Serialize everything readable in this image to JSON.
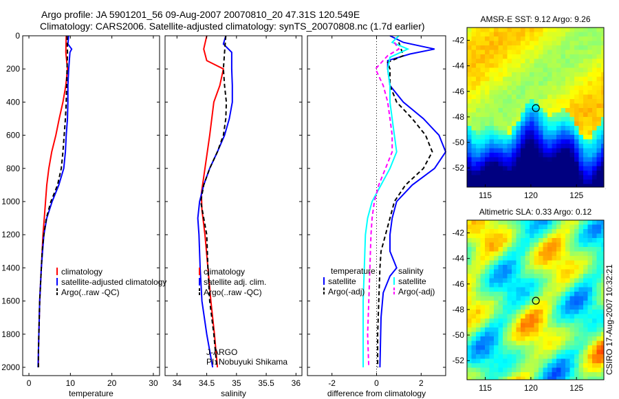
{
  "header": {
    "title_line1": "Argo profile: JA 5901201_56 09-Aug-2007 20070810_20 47.31S 120.549E",
    "title_line2": "Climatology: CARS2006. Satellite-adjusted climatology: synTS_20070808.nc (1.7d earlier)"
  },
  "colors": {
    "climatology": "#ff0000",
    "satellite": "#0000ff",
    "argo": "#000000",
    "satellite_salinity": "#00ffff",
    "argo_adj_salinity": "#ff00ff"
  },
  "chart_data": [
    {
      "type": "line",
      "id": "temperature",
      "xlabel": "temperature",
      "xlim": [
        -1.5,
        31.5
      ],
      "ylim": [
        2050,
        0
      ],
      "yreverse": true,
      "xticks": [
        0,
        10,
        20,
        30
      ],
      "yticks": [
        0,
        200,
        400,
        600,
        800,
        1000,
        1200,
        1400,
        1600,
        1800,
        2000
      ],
      "series": [
        {
          "name": "climatology",
          "color": "#ff0000",
          "dash": "",
          "points": [
            [
              9.0,
              0
            ],
            [
              8.9,
              100
            ],
            [
              9.3,
              200
            ],
            [
              8.9,
              300
            ],
            [
              8.2,
              400
            ],
            [
              7.3,
              500
            ],
            [
              6.5,
              600
            ],
            [
              5.5,
              700
            ],
            [
              4.8,
              800
            ],
            [
              4.3,
              900
            ],
            [
              4.0,
              1000
            ],
            [
              3.7,
              1100
            ],
            [
              3.4,
              1200
            ],
            [
              3.2,
              1300
            ],
            [
              3.0,
              1400
            ],
            [
              2.8,
              1500
            ],
            [
              2.6,
              1600
            ],
            [
              2.5,
              1700
            ],
            [
              2.4,
              1800
            ],
            [
              2.3,
              1900
            ],
            [
              2.3,
              2000
            ]
          ]
        },
        {
          "name": "satellite-adjusted climatology",
          "color": "#0000ff",
          "dash": "",
          "points": [
            [
              9.6,
              0
            ],
            [
              9.4,
              50
            ],
            [
              10.3,
              80
            ],
            [
              9.9,
              100
            ],
            [
              9.6,
              200
            ],
            [
              9.4,
              300
            ],
            [
              9.4,
              400
            ],
            [
              9.3,
              500
            ],
            [
              9.0,
              600
            ],
            [
              8.8,
              700
            ],
            [
              8.4,
              800
            ],
            [
              7.2,
              900
            ],
            [
              5.6,
              1000
            ],
            [
              4.3,
              1100
            ],
            [
              3.6,
              1200
            ],
            [
              3.3,
              1300
            ],
            [
              3.0,
              1400
            ],
            [
              2.8,
              1500
            ],
            [
              2.6,
              1600
            ],
            [
              2.5,
              1700
            ],
            [
              2.4,
              1800
            ],
            [
              2.3,
              1900
            ],
            [
              2.2,
              2000
            ]
          ]
        },
        {
          "name": "Argo(..raw -QC)",
          "color": "#000000",
          "dash": "6,4",
          "points": [
            [
              9.2,
              0
            ],
            [
              9.3,
              100
            ],
            [
              9.2,
              200
            ],
            [
              9.1,
              300
            ],
            [
              9.0,
              400
            ],
            [
              8.8,
              500
            ],
            [
              8.5,
              600
            ],
            [
              8.2,
              700
            ],
            [
              7.8,
              800
            ],
            [
              6.9,
              900
            ],
            [
              5.3,
              1000
            ],
            [
              4.2,
              1100
            ],
            [
              3.6,
              1200
            ],
            [
              3.2,
              1300
            ],
            [
              3.0,
              1400
            ],
            [
              2.8,
              1500
            ],
            [
              2.6,
              1600
            ],
            [
              2.5,
              1700
            ],
            [
              2.4,
              1800
            ],
            [
              2.3,
              1900
            ],
            [
              2.3,
              2000
            ]
          ]
        }
      ],
      "legend": [
        "climatology",
        "satellite-adjusted climatology",
        "Argo(..raw -QC)"
      ],
      "legend_position": "lower-right"
    },
    {
      "type": "line",
      "id": "salinity",
      "xlabel": "salinity",
      "xlim": [
        33.8,
        36.1
      ],
      "ylim": [
        2050,
        0
      ],
      "yreverse": true,
      "xticks": [
        34,
        34.5,
        35,
        35.5,
        36
      ],
      "series": [
        {
          "name": "climatology",
          "color": "#ff0000",
          "dash": "",
          "points": [
            [
              34.5,
              0
            ],
            [
              34.45,
              80
            ],
            [
              34.5,
              150
            ],
            [
              34.78,
              200
            ],
            [
              34.72,
              300
            ],
            [
              34.62,
              400
            ],
            [
              34.55,
              600
            ],
            [
              34.47,
              800
            ],
            [
              34.41,
              950
            ],
            [
              34.42,
              1050
            ],
            [
              34.47,
              1200
            ],
            [
              34.52,
              1400
            ],
            [
              34.57,
              1600
            ],
            [
              34.63,
              1800
            ],
            [
              34.68,
              2000
            ]
          ]
        },
        {
          "name": "satellite adj. clim.",
          "color": "#0000ff",
          "dash": "",
          "points": [
            [
              34.82,
              0
            ],
            [
              34.78,
              50
            ],
            [
              34.92,
              100
            ],
            [
              34.92,
              200
            ],
            [
              34.93,
              300
            ],
            [
              34.93,
              400
            ],
            [
              34.88,
              500
            ],
            [
              34.8,
              600
            ],
            [
              34.68,
              700
            ],
            [
              34.55,
              800
            ],
            [
              34.45,
              900
            ],
            [
              34.38,
              1000
            ],
            [
              34.35,
              1100
            ],
            [
              34.37,
              1200
            ],
            [
              34.39,
              1400
            ],
            [
              34.42,
              1600
            ],
            [
              34.5,
              1800
            ],
            [
              34.6,
              2000
            ]
          ]
        },
        {
          "name": "Argo(..raw -QC)",
          "color": "#000000",
          "dash": "6,4",
          "points": [
            [
              34.82,
              0
            ],
            [
              34.8,
              100
            ],
            [
              34.78,
              200
            ],
            [
              34.8,
              300
            ],
            [
              34.83,
              400
            ],
            [
              34.82,
              500
            ],
            [
              34.78,
              600
            ],
            [
              34.68,
              700
            ],
            [
              34.55,
              800
            ],
            [
              34.45,
              900
            ],
            [
              34.4,
              1000
            ],
            [
              34.45,
              1100
            ],
            [
              34.5,
              1200
            ],
            [
              34.52,
              1400
            ],
            [
              34.55,
              1600
            ],
            [
              34.62,
              1800
            ],
            [
              34.67,
              2000
            ]
          ]
        }
      ],
      "legend": [
        "climatology",
        "satellite adj. clim.",
        "Argo(..raw -QC)"
      ],
      "legend_position": "lower-right",
      "annotation": [
        "J-ARGO",
        "PI: Nobuyuki Shikama"
      ]
    },
    {
      "type": "line",
      "id": "difference",
      "xlabel": "difference from climatology",
      "xlim": [
        -3.1,
        3.1
      ],
      "ylim": [
        2050,
        0
      ],
      "yreverse": true,
      "xticks": [
        -2,
        0,
        2
      ],
      "series": [
        {
          "name": "temperature satellite",
          "color": "#0000ff",
          "dash": "",
          "points": [
            [
              0.6,
              0
            ],
            [
              1.2,
              40
            ],
            [
              2.6,
              80
            ],
            [
              1.5,
              110
            ],
            [
              0.5,
              150
            ],
            [
              0.5,
              200
            ],
            [
              0.6,
              300
            ],
            [
              1.2,
              400
            ],
            [
              2.1,
              500
            ],
            [
              2.8,
              600
            ],
            [
              3.1,
              700
            ],
            [
              2.6,
              800
            ],
            [
              1.6,
              900
            ],
            [
              0.9,
              1000
            ],
            [
              0.7,
              1100
            ],
            [
              0.6,
              1200
            ],
            [
              0.6,
              1300
            ],
            [
              0.9,
              1400
            ],
            [
              0.6,
              1450
            ],
            [
              0.3,
              1550
            ],
            [
              0.2,
              1700
            ],
            [
              0.15,
              2000
            ]
          ]
        },
        {
          "name": "temperature Argo(-adj)",
          "color": "#000000",
          "dash": "6,4",
          "points": [
            [
              1.0,
              40
            ],
            [
              1.1,
              80
            ],
            [
              1.2,
              120
            ],
            [
              0.5,
              160
            ],
            [
              0.6,
              200
            ],
            [
              0.6,
              300
            ],
            [
              0.9,
              400
            ],
            [
              1.6,
              500
            ],
            [
              2.2,
              600
            ],
            [
              2.5,
              700
            ],
            [
              2.1,
              800
            ],
            [
              1.3,
              900
            ],
            [
              0.8,
              1000
            ],
            [
              0.6,
              1100
            ],
            [
              0.4,
              1200
            ],
            [
              0.2,
              1300
            ],
            [
              0.15,
              1400
            ],
            [
              0.1,
              1600
            ],
            [
              0.05,
              1800
            ],
            [
              0.05,
              2000
            ]
          ]
        },
        {
          "name": "salinity satellite",
          "color": "#00ffff",
          "dash": "",
          "points": [
            [
              1.0,
              0
            ],
            [
              0.7,
              40
            ],
            [
              1.4,
              80
            ],
            [
              0.6,
              130
            ],
            [
              0.5,
              200
            ],
            [
              0.6,
              300
            ],
            [
              0.6,
              400
            ],
            [
              0.7,
              500
            ],
            [
              0.8,
              600
            ],
            [
              0.9,
              700
            ],
            [
              0.6,
              800
            ],
            [
              0.2,
              900
            ],
            [
              -0.2,
              1000
            ],
            [
              -0.4,
              1100
            ],
            [
              -0.5,
              1200
            ],
            [
              -0.55,
              1400
            ],
            [
              -0.6,
              1600
            ],
            [
              -0.6,
              1800
            ],
            [
              -0.6,
              2000
            ]
          ]
        },
        {
          "name": "salinity Argo(-adj)",
          "color": "#ff00ff",
          "dash": "6,4",
          "points": [
            [
              0.8,
              40
            ],
            [
              1.0,
              80
            ],
            [
              0.5,
              120
            ],
            [
              -0.05,
              200
            ],
            [
              0.3,
              300
            ],
            [
              0.5,
              400
            ],
            [
              0.6,
              500
            ],
            [
              0.7,
              600
            ],
            [
              0.7,
              700
            ],
            [
              0.4,
              800
            ],
            [
              0.1,
              900
            ],
            [
              -0.1,
              1000
            ],
            [
              -0.2,
              1100
            ],
            [
              -0.25,
              1200
            ],
            [
              -0.3,
              1400
            ],
            [
              -0.35,
              1600
            ],
            [
              -0.4,
              1800
            ],
            [
              -0.35,
              2000
            ]
          ]
        }
      ],
      "zero_line": true,
      "legend_groups": [
        {
          "heading": "temperature",
          "items": [
            "satellite",
            "Argo(-adj)"
          ]
        },
        {
          "heading": "salinity",
          "items": [
            "satellite",
            "Argo(-adj)"
          ]
        }
      ],
      "legend_position": "lower-middle"
    },
    {
      "type": "heatmap",
      "id": "sst_map",
      "title": "AMSR-E SST: 9.12 Argo: 9.26",
      "xlim": [
        113,
        128
      ],
      "ylim": [
        -53.5,
        -41
      ],
      "xticks": [
        115,
        120,
        125
      ],
      "yticks": [
        -42,
        -44,
        -46,
        -48,
        -50,
        -52
      ],
      "marker": [
        120.549,
        -47.31
      ]
    },
    {
      "type": "heatmap",
      "id": "sla_map",
      "title": "Altimetric SLA: 0.33 Argo: 0.12",
      "xlim": [
        113,
        128
      ],
      "ylim": [
        -53.5,
        -41
      ],
      "xticks": [
        115,
        120,
        125
      ],
      "yticks": [
        -42,
        -44,
        -46,
        -48,
        -50,
        -52
      ],
      "marker": [
        120.549,
        -47.31
      ]
    }
  ],
  "side_caption": "CSIRO 17-Aug-2007 10:32:21"
}
